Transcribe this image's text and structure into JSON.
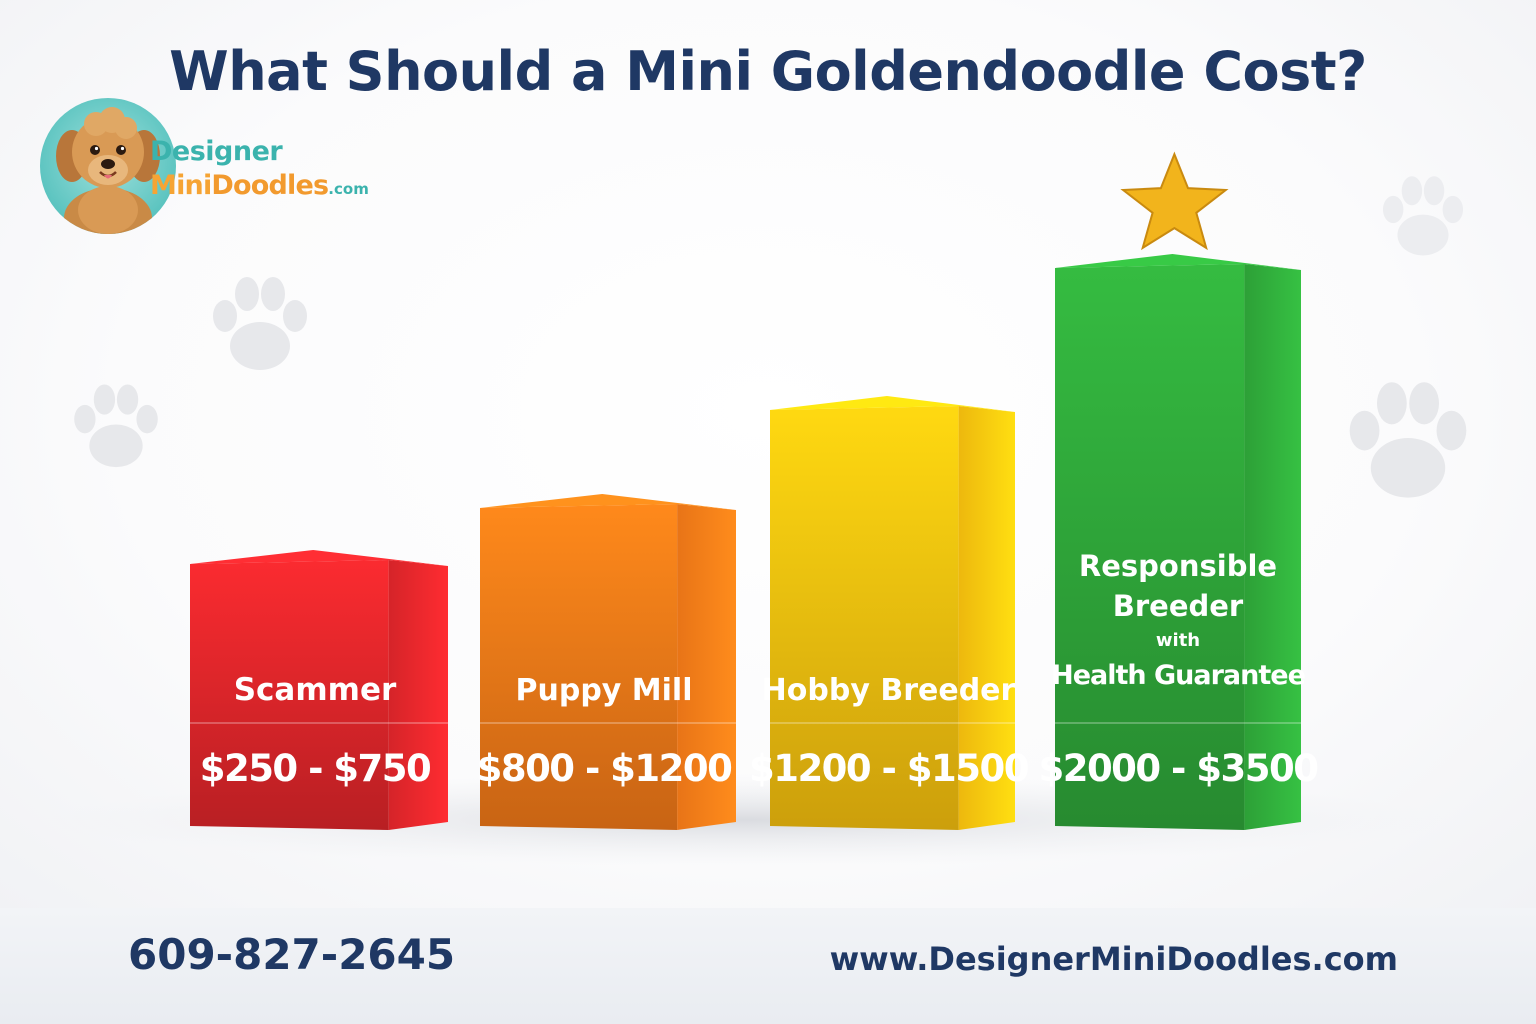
{
  "title": "What Should a Mini Goldendoodle Cost?",
  "logo": {
    "line1": "Designer",
    "line2_mini": "Mini",
    "line2_doodles": "Doodles",
    "line2_com": ".com"
  },
  "footer": {
    "phone": "609-827-2645",
    "website": "www.DesignerMiniDoodles.com"
  },
  "colors": {
    "title": "#1f3864",
    "scammer": "#e0262b",
    "puppy_mill": "#f47a18",
    "hobby_breeder": "#f9c20f",
    "responsible_breeder": "#2fa83a",
    "star": "#f2b41c"
  },
  "icons": [
    "dog-logo-icon",
    "paw-print-icon",
    "star-icon"
  ],
  "chart_data": {
    "type": "bar",
    "title": "What Should a Mini Goldendoodle Cost?",
    "categories": [
      "Scammer",
      "Puppy Mill",
      "Hobby Breeder",
      "Responsible Breeder with Health Guarantee"
    ],
    "label_lines": [
      [
        "Scammer"
      ],
      [
        "Puppy Mill"
      ],
      [
        "Hobby Breeder"
      ],
      [
        "Responsible",
        "Breeder",
        "with",
        "Health Guarantee"
      ]
    ],
    "price_labels": [
      "$250 - $750",
      "$800 - $1200",
      "$1200 - $1500",
      "$2000 - $3500"
    ],
    "ranges": [
      [
        250,
        750
      ],
      [
        800,
        1200
      ],
      [
        1200,
        1500
      ],
      [
        2000,
        3500
      ]
    ],
    "values": [
      750,
      1200,
      1500,
      3500
    ],
    "highlighted": "Responsible Breeder with Health Guarantee",
    "grid": false,
    "legend": "none"
  }
}
